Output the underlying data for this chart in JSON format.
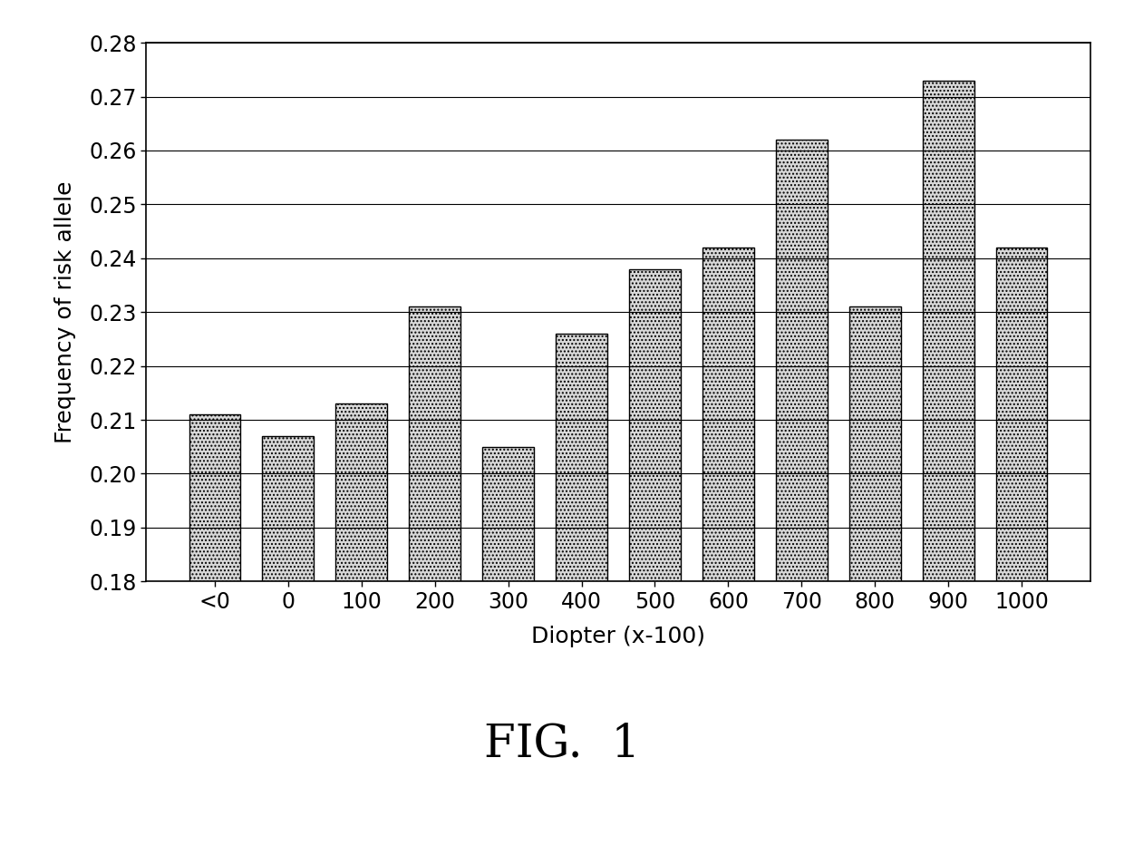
{
  "categories": [
    "<0",
    "0",
    "100",
    "200",
    "300",
    "400",
    "500",
    "600",
    "700",
    "800",
    "900",
    "1000"
  ],
  "values": [
    0.211,
    0.207,
    0.213,
    0.231,
    0.205,
    0.226,
    0.238,
    0.242,
    0.262,
    0.231,
    0.273,
    0.242
  ],
  "ylabel": "Frequency of risk allele",
  "xlabel": "Diopter (x-100)",
  "fig_label": "FIG.  1",
  "ylim": [
    0.18,
    0.28
  ],
  "yticks": [
    0.18,
    0.19,
    0.2,
    0.21,
    0.22,
    0.23,
    0.24,
    0.25,
    0.26,
    0.27,
    0.28
  ],
  "bar_color": "#d8d8d8",
  "bar_edgecolor": "#000000",
  "background_color": "#ffffff",
  "hatch": "....",
  "title_fontsize": 36,
  "label_fontsize": 18,
  "tick_fontsize": 17
}
